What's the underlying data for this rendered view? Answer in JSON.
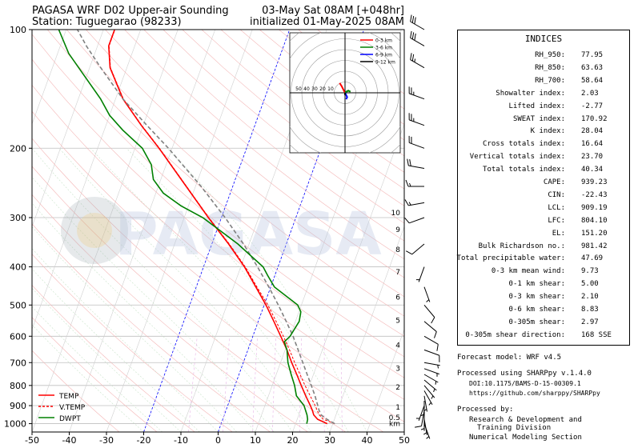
{
  "header": {
    "title": "PAGASA WRF D02 Upper-air Sounding",
    "station": "Station: Tuguegarao (98233)",
    "valid": "03-May Sat 08AM [+048hr]",
    "init": "initialized 01-May-2025 08AM"
  },
  "watermark": "PAGASA",
  "chart_data": {
    "type": "line",
    "xlim": [
      -50,
      50
    ],
    "ylim": [
      1050,
      100
    ],
    "yscale": "log",
    "x_ticks": [
      -50,
      -40,
      -30,
      -20,
      -10,
      0,
      10,
      20,
      30,
      40,
      50
    ],
    "p_ticks": [
      100,
      200,
      300,
      400,
      500,
      600,
      700,
      800,
      900,
      1000
    ],
    "grid": true,
    "legend_position": "bottom-left",
    "legend": [
      "TEMP",
      "V.TEMP",
      "DWPT"
    ],
    "series": [
      {
        "name": "TEMP",
        "color": "#ff0000",
        "style": "solid",
        "points": [
          [
            1000,
            28.5
          ],
          [
            975,
            25.5
          ],
          [
            950,
            24.0
          ],
          [
            925,
            23.2
          ],
          [
            900,
            22.2
          ],
          [
            850,
            20.0
          ],
          [
            800,
            17.8
          ],
          [
            750,
            15.5
          ],
          [
            700,
            13.0
          ],
          [
            650,
            10.5
          ],
          [
            600,
            7.5
          ],
          [
            550,
            4.2
          ],
          [
            500,
            0.5
          ],
          [
            450,
            -4.0
          ],
          [
            400,
            -9.0
          ],
          [
            350,
            -15.5
          ],
          [
            300,
            -23.5
          ],
          [
            250,
            -32.5
          ],
          [
            200,
            -43.5
          ],
          [
            175,
            -50.5
          ],
          [
            150,
            -58.0
          ],
          [
            125,
            -64.5
          ],
          [
            110,
            -67.0
          ],
          [
            100,
            -67.0
          ]
        ]
      },
      {
        "name": "V.TEMP",
        "color": "#ff0000",
        "style": "dashed",
        "points": [
          [
            1000,
            30.5
          ],
          [
            975,
            27.0
          ],
          [
            950,
            25.5
          ],
          [
            925,
            24.5
          ],
          [
            900,
            23.5
          ],
          [
            850,
            21.2
          ],
          [
            800,
            18.8
          ],
          [
            750,
            16.4
          ],
          [
            700,
            13.8
          ],
          [
            650,
            11.2
          ],
          [
            600,
            8.2
          ],
          [
            550,
            4.8
          ],
          [
            500,
            1.0
          ],
          [
            450,
            -3.7
          ],
          [
            400,
            -8.8
          ],
          [
            350,
            -15.3
          ],
          [
            300,
            -23.4
          ],
          [
            250,
            -32.4
          ],
          [
            200,
            -43.4
          ],
          [
            175,
            -50.4
          ],
          [
            150,
            -57.9
          ],
          [
            125,
            -64.4
          ],
          [
            110,
            -66.9
          ],
          [
            100,
            -66.9
          ]
        ]
      },
      {
        "name": "Parcel",
        "color": "#808080",
        "style": "dashed",
        "points": [
          [
            1000,
            30.5
          ],
          [
            975,
            28.0
          ],
          [
            950,
            26.0
          ],
          [
            925,
            25.0
          ],
          [
            900,
            24.2
          ],
          [
            850,
            22.5
          ],
          [
            800,
            20.5
          ],
          [
            750,
            18.3
          ],
          [
            700,
            16.0
          ],
          [
            650,
            13.5
          ],
          [
            600,
            10.8
          ],
          [
            550,
            7.5
          ],
          [
            500,
            3.8
          ],
          [
            450,
            -0.5
          ],
          [
            400,
            -5.5
          ],
          [
            350,
            -11.5
          ],
          [
            300,
            -19.0
          ],
          [
            250,
            -28.5
          ],
          [
            200,
            -41.0
          ],
          [
            175,
            -49.0
          ],
          [
            150,
            -58.0
          ],
          [
            125,
            -67.0
          ],
          [
            110,
            -73.0
          ],
          [
            100,
            -77.0
          ]
        ]
      },
      {
        "name": "DWPT",
        "color": "#008000",
        "style": "solid",
        "points": [
          [
            1000,
            23.0
          ],
          [
            975,
            22.8
          ],
          [
            950,
            22.2
          ],
          [
            900,
            20.5
          ],
          [
            850,
            17.5
          ],
          [
            800,
            16.0
          ],
          [
            750,
            14.0
          ],
          [
            700,
            12.0
          ],
          [
            650,
            10.5
          ],
          [
            620,
            9.0
          ],
          [
            600,
            10.0
          ],
          [
            550,
            11.0
          ],
          [
            520,
            10.5
          ],
          [
            500,
            9.0
          ],
          [
            450,
            1.0
          ],
          [
            420,
            -2.0
          ],
          [
            400,
            -4.0
          ],
          [
            350,
            -13.0
          ],
          [
            300,
            -25.0
          ],
          [
            280,
            -32.0
          ],
          [
            260,
            -38.0
          ],
          [
            240,
            -42.0
          ],
          [
            220,
            -44.0
          ],
          [
            200,
            -48.0
          ],
          [
            180,
            -55.0
          ],
          [
            165,
            -60.0
          ],
          [
            150,
            -64.0
          ],
          [
            130,
            -71.0
          ],
          [
            115,
            -77.0
          ],
          [
            100,
            -82.0
          ]
        ]
      }
    ],
    "height_labels": [
      {
        "label": "10",
        "p": 290
      },
      {
        "label": "9",
        "p": 320
      },
      {
        "label": "8",
        "p": 360
      },
      {
        "label": "7",
        "p": 410
      },
      {
        "label": "6",
        "p": 475
      },
      {
        "label": "5",
        "p": 545
      },
      {
        "label": "4",
        "p": 630
      },
      {
        "label": "3",
        "p": 720
      },
      {
        "label": "2",
        "p": 805
      },
      {
        "label": "1",
        "p": 905
      },
      {
        "label": "0.5",
        "p": 960
      },
      {
        "label": "km",
        "p": 995
      }
    ],
    "hodograph": {
      "rings_labels": [
        "50",
        "40",
        "30",
        "20",
        "10"
      ],
      "legend": [
        {
          "name": "0-3 km",
          "color": "#ff0000"
        },
        {
          "name": "3-6 km",
          "color": "#008000"
        },
        {
          "name": "6-9 km",
          "color": "#0000ff"
        },
        {
          "name": "9-12 km",
          "color": "#000000"
        }
      ],
      "segments": [
        {
          "color": "#ff0000",
          "uv": [
            [
              0,
              0
            ],
            [
              -1,
              2
            ],
            [
              -3,
              6
            ],
            [
              -5,
              9
            ]
          ]
        },
        {
          "color": "#008000",
          "uv": [
            [
              0,
              0
            ],
            [
              1,
              1
            ],
            [
              3,
              2
            ],
            [
              5,
              1
            ]
          ]
        },
        {
          "color": "#0000ff",
          "uv": [
            [
              0,
              0
            ],
            [
              1,
              -2
            ],
            [
              2,
              -4
            ],
            [
              1,
              -6
            ]
          ]
        },
        {
          "color": "#000000",
          "uv": [
            [
              0,
              0
            ],
            [
              0,
              -2
            ]
          ]
        }
      ]
    },
    "wind_barbs": [
      {
        "p": 1000,
        "dir": 160,
        "spd": 5
      },
      {
        "p": 975,
        "dir": 170,
        "spd": 8
      },
      {
        "p": 950,
        "dir": 180,
        "spd": 8
      },
      {
        "p": 925,
        "dir": 190,
        "spd": 10
      },
      {
        "p": 900,
        "dir": 200,
        "spd": 8
      },
      {
        "p": 875,
        "dir": 180,
        "spd": 5
      },
      {
        "p": 850,
        "dir": 170,
        "spd": 5
      },
      {
        "p": 825,
        "dir": 150,
        "spd": 5
      },
      {
        "p": 800,
        "dir": 140,
        "spd": 5
      },
      {
        "p": 775,
        "dir": 130,
        "spd": 5
      },
      {
        "p": 750,
        "dir": 120,
        "spd": 5
      },
      {
        "p": 725,
        "dir": 110,
        "spd": 5
      },
      {
        "p": 700,
        "dir": 100,
        "spd": 5
      },
      {
        "p": 650,
        "dir": 110,
        "spd": 10
      },
      {
        "p": 600,
        "dir": 120,
        "spd": 10
      },
      {
        "p": 550,
        "dir": 130,
        "spd": 10
      },
      {
        "p": 500,
        "dir": 140,
        "spd": 10
      },
      {
        "p": 450,
        "dir": 160,
        "spd": 5
      },
      {
        "p": 400,
        "dir": 200,
        "spd": 5
      },
      {
        "p": 350,
        "dir": 230,
        "spd": 10
      },
      {
        "p": 300,
        "dir": 250,
        "spd": 10
      },
      {
        "p": 275,
        "dir": 260,
        "spd": 15
      },
      {
        "p": 250,
        "dir": 270,
        "spd": 15
      },
      {
        "p": 225,
        "dir": 280,
        "spd": 20
      },
      {
        "p": 200,
        "dir": 290,
        "spd": 20
      },
      {
        "p": 175,
        "dir": 290,
        "spd": 25
      },
      {
        "p": 150,
        "dir": 290,
        "spd": 25
      },
      {
        "p": 125,
        "dir": 300,
        "spd": 25
      },
      {
        "p": 110,
        "dir": 300,
        "spd": 30
      },
      {
        "p": 100,
        "dir": 300,
        "spd": 30
      }
    ]
  },
  "indices": {
    "title": "INDICES",
    "rows": [
      {
        "label": "RH_950:",
        "value": "77.95"
      },
      {
        "label": "RH_850:",
        "value": "63.63"
      },
      {
        "label": "RH_700:",
        "value": "58.64"
      },
      {
        "label": "Showalter index:",
        "value": "2.03"
      },
      {
        "label": "Lifted index:",
        "value": "-2.77"
      },
      {
        "label": "SWEAT index:",
        "value": "170.92"
      },
      {
        "label": "K index:",
        "value": "28.04"
      },
      {
        "label": "Cross totals index:",
        "value": "16.64"
      },
      {
        "label": "Vertical totals index:",
        "value": "23.70"
      },
      {
        "label": "Total totals index:",
        "value": "40.34"
      },
      {
        "label": "CAPE:",
        "value": "939.23"
      },
      {
        "label": "CIN:",
        "value": "-22.43"
      },
      {
        "label": "LCL:",
        "value": "909.19"
      },
      {
        "label": "LFC:",
        "value": "804.10"
      },
      {
        "label": "EL:",
        "value": "151.20"
      },
      {
        "label": "Bulk Richardson no.:",
        "value": "981.42"
      },
      {
        "label": "Total precipitable water:",
        "value": "47.69"
      },
      {
        "label": "0-3 km mean wind:",
        "value": "9.73"
      },
      {
        "label": "0-1 km shear:",
        "value": "5.00"
      },
      {
        "label": "0-3 km shear:",
        "value": "2.10"
      },
      {
        "label": "0-6 km shear:",
        "value": "8.83"
      },
      {
        "label": "0-305m shear:",
        "value": "2.97"
      },
      {
        "label": "0-305m shear direction:",
        "value": "168 SSE"
      }
    ]
  },
  "footer": {
    "model": "Forecast model: WRF v4.5",
    "sharppy": "Processed using SHARPpy v.1.4.0",
    "doi": "DOI:10.1175/BAMS-D-15-00309.1",
    "url": "https://github.com/sharppy/SHARPpy",
    "by": "Processed by:",
    "org1": "Research & Development and",
    "org2": "Training Division",
    "org3": "Numerical Modeling Section"
  }
}
